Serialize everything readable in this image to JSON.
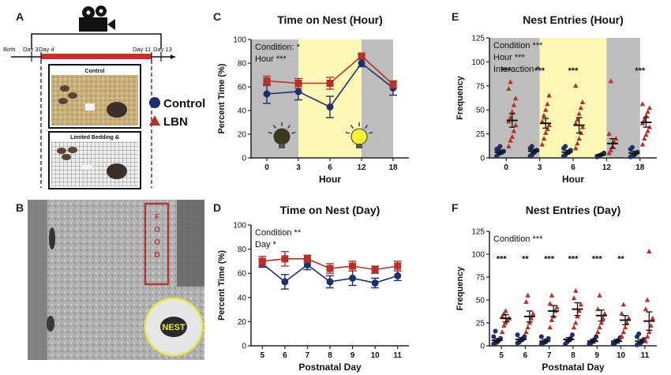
{
  "figure": {
    "panel_letters": [
      "A",
      "B",
      "C",
      "D",
      "E",
      "F"
    ],
    "colors": {
      "control": "#1f2f6b",
      "lbn": "#b5322b",
      "axis": "#222222",
      "gray_band": "#bdbdbd",
      "yellow_band": "#fdf8b5",
      "rect_red": "#b03a33",
      "nest_circle": "#e8e84a"
    }
  },
  "panel_a": {
    "letter": "A",
    "timeline_labels": [
      "Birth",
      "Day 3",
      "Day 4",
      "Day 11",
      "Day 13"
    ],
    "condition_titles": [
      "Control",
      "Limited Bedding &"
    ],
    "legend": [
      {
        "label": "Control",
        "marker": "circle"
      },
      {
        "label": "LBN",
        "marker": "triangle"
      }
    ],
    "icons": [
      "video-camera-icon"
    ]
  },
  "panel_b": {
    "letter": "B",
    "food_label": [
      "F",
      "O",
      "O",
      "D"
    ],
    "nest_label": "NEST"
  },
  "chart_data": [
    {
      "id": "C",
      "type": "line",
      "title": "Time on Nest (Hour)",
      "xlabel": "Hour",
      "ylabel": "Percent Time (%)",
      "categories": [
        "0",
        "3",
        "6",
        "12",
        "18"
      ],
      "ylim": [
        0,
        100
      ],
      "yticks": [
        0,
        20,
        40,
        60,
        80,
        100
      ],
      "annotations": [
        "Condition: *",
        "Hour ***"
      ],
      "bands": [
        {
          "from": 0,
          "to": 1.5,
          "color": "gray"
        },
        {
          "from": 1.5,
          "to": 3.5,
          "color": "yellow"
        },
        {
          "from": 3.5,
          "to": 4.5,
          "color": "gray"
        }
      ],
      "series": [
        {
          "name": "Control",
          "marker": "circle",
          "values": [
            54,
            56,
            43,
            80,
            59
          ],
          "errors": [
            8,
            7,
            9,
            3,
            6
          ]
        },
        {
          "name": "LBN",
          "marker": "square",
          "values": [
            65,
            63,
            63,
            86,
            62
          ],
          "errors": [
            4,
            4,
            5,
            2,
            3
          ]
        }
      ]
    },
    {
      "id": "D",
      "type": "line",
      "title": "Time on Nest (Day)",
      "xlabel": "Postnatal Day",
      "ylabel": "Percent Time (%)",
      "categories": [
        "5",
        "6",
        "7",
        "8",
        "9",
        "10",
        "11"
      ],
      "ylim": [
        0,
        100
      ],
      "yticks": [
        0,
        20,
        40,
        60,
        80,
        100
      ],
      "annotations": [
        "Condition **",
        "Day *"
      ],
      "series": [
        {
          "name": "Control",
          "marker": "circle",
          "values": [
            68,
            53,
            67,
            53,
            56,
            52,
            58
          ],
          "errors": [
            3,
            6,
            4,
            5,
            6,
            4,
            4
          ]
        },
        {
          "name": "LBN",
          "marker": "square",
          "values": [
            70,
            72,
            72,
            64,
            66,
            63,
            66
          ],
          "errors": [
            4,
            6,
            3,
            4,
            4,
            3,
            4
          ]
        }
      ]
    },
    {
      "id": "E",
      "type": "scatter",
      "title": "Nest Entries (Hour)",
      "xlabel": "Hour",
      "ylabel": "Frequency",
      "categories": [
        "0",
        "3",
        "6",
        "12",
        "18"
      ],
      "ylim": [
        0,
        125
      ],
      "yticks": [
        0,
        25,
        50,
        75,
        100,
        125
      ],
      "annotations": [
        "Condition ***",
        "Hour ***",
        "Interaction *"
      ],
      "significance": [
        "***",
        "***",
        "***",
        "",
        "***"
      ],
      "bands": [
        {
          "from": 0,
          "to": 1.5,
          "color": "gray"
        },
        {
          "from": 1.5,
          "to": 3.5,
          "color": "yellow"
        },
        {
          "from": 3.5,
          "to": 4.5,
          "color": "gray"
        }
      ],
      "series": [
        {
          "name": "Control",
          "marker": "circle",
          "means": [
            6,
            7,
            6,
            3,
            5
          ],
          "errors": [
            2,
            2,
            2,
            1,
            2
          ],
          "points": [
            [
              2,
              4,
              5,
              6,
              7,
              9,
              10,
              12
            ],
            [
              2,
              3,
              5,
              7,
              8,
              10,
              12
            ],
            [
              2,
              3,
              5,
              6,
              8,
              10,
              12
            ],
            [
              1,
              2,
              3,
              4,
              5
            ],
            [
              1,
              2,
              3,
              5,
              6,
              9,
              11
            ]
          ]
        },
        {
          "name": "LBN",
          "marker": "triangle",
          "means": [
            39,
            36,
            34,
            15,
            37
          ],
          "errors": [
            7,
            5,
            8,
            5,
            5
          ],
          "points": [
            [
              12,
              18,
              22,
              28,
              34,
              38,
              42,
              48,
              55,
              62,
              72,
              79
            ],
            [
              14,
              20,
              26,
              30,
              34,
              38,
              44,
              50,
              56,
              65
            ],
            [
              10,
              15,
              20,
              26,
              32,
              36,
              40,
              46,
              52,
              58,
              75
            ],
            [
              5,
              8,
              12,
              16,
              20,
              25,
              80
            ],
            [
              14,
              20,
              24,
              28,
              32,
              36,
              40,
              44,
              48,
              52,
              56
            ]
          ]
        }
      ]
    },
    {
      "id": "F",
      "type": "scatter",
      "title": "Nest Entries (Day)",
      "xlabel": "Postnatal Day",
      "ylabel": "Frequency",
      "categories": [
        "5",
        "6",
        "7",
        "8",
        "9",
        "10",
        "11"
      ],
      "ylim": [
        0,
        125
      ],
      "yticks": [
        0,
        25,
        50,
        75,
        100,
        125
      ],
      "annotations": [
        "Condition ***"
      ],
      "significance": [
        "***",
        "**",
        "***",
        "***",
        "***",
        "**",
        ""
      ],
      "series": [
        {
          "name": "Control",
          "marker": "circle",
          "means": [
            6,
            7,
            5,
            7,
            5,
            5,
            5
          ],
          "errors": [
            2,
            2,
            2,
            2,
            2,
            2,
            2
          ],
          "points": [
            [
              2,
              3,
              4,
              6,
              8,
              10,
              16
            ],
            [
              3,
              4,
              6,
              8,
              10,
              12
            ],
            [
              2,
              3,
              4,
              6,
              8,
              10
            ],
            [
              2,
              4,
              6,
              8,
              12
            ],
            [
              2,
              3,
              5,
              7,
              10
            ],
            [
              2,
              3,
              5,
              6,
              9
            ],
            [
              1,
              2,
              3,
              5,
              7,
              10,
              13
            ]
          ]
        },
        {
          "name": "LBN",
          "marker": "triangle",
          "means": [
            30,
            32,
            38,
            40,
            33,
            28,
            27
          ],
          "errors": [
            4,
            6,
            6,
            7,
            6,
            5,
            10
          ],
          "points": [
            [
              15,
              22,
              25,
              28,
              30,
              32,
              35,
              38
            ],
            [
              15,
              20,
              25,
              30,
              35,
              48,
              55
            ],
            [
              20,
              28,
              32,
              38,
              42,
              46,
              55
            ],
            [
              20,
              25,
              32,
              38,
              45,
              52,
              60
            ],
            [
              15,
              20,
              25,
              30,
              35,
              40,
              55
            ],
            [
              10,
              15,
              20,
              25,
              30,
              35,
              45
            ],
            [
              5,
              10,
              15,
              22,
              30,
              40,
              50,
              103
            ]
          ]
        }
      ]
    }
  ]
}
